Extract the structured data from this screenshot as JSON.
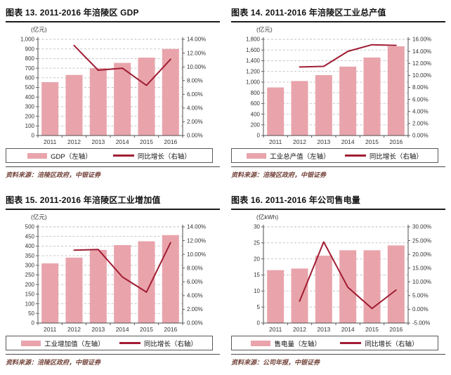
{
  "colors": {
    "bar_fill": "#e9a4ab",
    "line_stroke": "#a01d33",
    "grid_line": "#bfbfbf",
    "axis_line": "#4d4d4d",
    "axis_text": "#333333",
    "title_text": "#111111",
    "source_text": "#74443b"
  },
  "chart_data": [
    {
      "type": "bar+line",
      "title": "图表 13. 2011-2016 年涪陵区 GDP",
      "unit_label": "(亿元)",
      "categories": [
        "2011",
        "2012",
        "2013",
        "2014",
        "2015",
        "2016"
      ],
      "series": [
        {
          "name": "GDP（左轴）",
          "type": "bar",
          "axis": "left",
          "values": [
            555,
            630,
            700,
            755,
            810,
            900
          ]
        },
        {
          "name": "同比增长（右轴）",
          "type": "line",
          "axis": "right",
          "values": [
            null,
            13.1,
            9.5,
            9.8,
            7.3,
            11.1
          ]
        }
      ],
      "left_axis": {
        "min": 0,
        "max": 1000,
        "step": 100,
        "tick_labels": [
          "0",
          "100",
          "200",
          "300",
          "400",
          "500",
          "600",
          "700",
          "800",
          "900",
          "1,000"
        ]
      },
      "right_axis": {
        "min": 0,
        "max": 14,
        "step": 2,
        "tick_labels": [
          "0.00%",
          "2.00%",
          "4.00%",
          "6.00%",
          "8.00%",
          "10.00%",
          "12.00%",
          "14.00%"
        ]
      },
      "source": "资料来源：涪陵区政府，中银证券"
    },
    {
      "type": "bar+line",
      "title": "图表 14. 2011-2016 年涪陵区工业总产值",
      "unit_label": "(亿元)",
      "categories": [
        "2011",
        "2012",
        "2013",
        "2014",
        "2015",
        "2016"
      ],
      "series": [
        {
          "name": "工业总产值（左轴）",
          "type": "bar",
          "axis": "left",
          "values": [
            900,
            1020,
            1130,
            1290,
            1460,
            1670
          ]
        },
        {
          "name": "同比增长（右轴）",
          "type": "line",
          "axis": "right",
          "values": [
            null,
            11.4,
            11.5,
            14.0,
            15.1,
            15.0
          ]
        }
      ],
      "left_axis": {
        "min": 0,
        "max": 1800,
        "step": 200,
        "tick_labels": [
          "0",
          "200",
          "400",
          "600",
          "800",
          "1,000",
          "1,200",
          "1,400",
          "1,600",
          "1,800"
        ]
      },
      "right_axis": {
        "min": 0,
        "max": 16,
        "step": 2,
        "tick_labels": [
          "0.00%",
          "2.00%",
          "4.00%",
          "6.00%",
          "8.00%",
          "10.00%",
          "12.00%",
          "14.00%",
          "16.00%"
        ]
      },
      "source": "资料来源：涪陵区政府，中银证券"
    },
    {
      "type": "bar+line",
      "title": "图表 15. 2011-2016 年涪陵区工业增加值",
      "unit_label": "(亿元)",
      "categories": [
        "2011",
        "2012",
        "2013",
        "2014",
        "2015",
        "2016"
      ],
      "series": [
        {
          "name": "工业增加值（左轴）",
          "type": "bar",
          "axis": "left",
          "values": [
            310,
            340,
            380,
            405,
            425,
            457
          ]
        },
        {
          "name": "同比增长（右轴）",
          "type": "line",
          "axis": "right",
          "values": [
            null,
            10.6,
            10.7,
            6.7,
            4.5,
            11.7
          ]
        }
      ],
      "left_axis": {
        "min": 0,
        "max": 500,
        "step": 50,
        "tick_labels": [
          "0",
          "50",
          "100",
          "150",
          "200",
          "250",
          "300",
          "350",
          "400",
          "450",
          "500"
        ]
      },
      "right_axis": {
        "min": 0,
        "max": 14,
        "step": 2,
        "tick_labels": [
          "0.00%",
          "2.00%",
          "4.00%",
          "6.00%",
          "8.00%",
          "10.00%",
          "12.00%",
          "14.00%"
        ]
      },
      "source": "资料来源：涪陵区政府，中银证券"
    },
    {
      "type": "bar+line",
      "title": "图表 16. 2011-2016 年公司售电量",
      "unit_label": "(亿kWh)",
      "categories": [
        "2011",
        "2012",
        "2013",
        "2014",
        "2015",
        "2016"
      ],
      "series": [
        {
          "name": "售电量（左轴）",
          "type": "bar",
          "axis": "left",
          "values": [
            16.5,
            17.0,
            21.0,
            22.7,
            22.7,
            24.2
          ]
        },
        {
          "name": "同比增长（右轴）",
          "type": "line",
          "axis": "right",
          "values": [
            null,
            3.0,
            24.5,
            8.0,
            0.3,
            7.0
          ]
        }
      ],
      "left_axis": {
        "min": 0,
        "max": 30,
        "step": 5,
        "tick_labels": [
          "0",
          "5",
          "10",
          "15",
          "20",
          "25",
          "30"
        ]
      },
      "right_axis": {
        "min": -5,
        "max": 30,
        "step": 5,
        "tick_labels": [
          "-5.00%",
          "0.00%",
          "5.00%",
          "10.00%",
          "15.00%",
          "20.00%",
          "25.00%",
          "30.00%"
        ]
      },
      "source": "资料来源：公司年报，中银证券"
    }
  ]
}
